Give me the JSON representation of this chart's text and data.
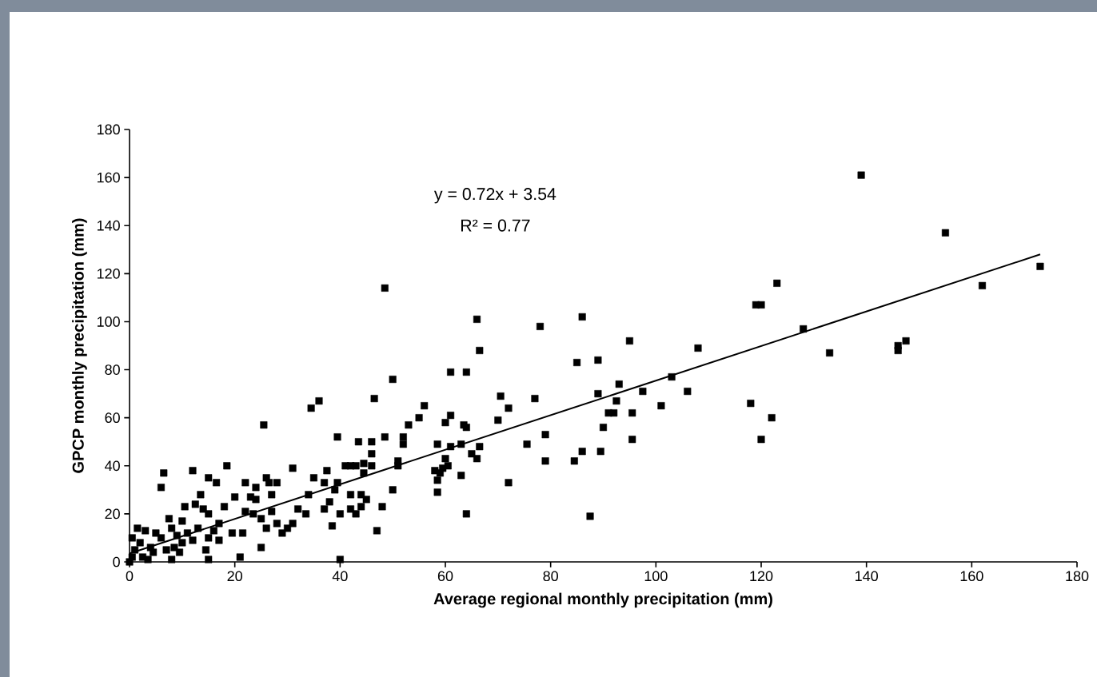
{
  "chart_data": {
    "type": "scatter",
    "xlabel": "Average regional monthly precipitation (mm)",
    "ylabel": "GPCP monthly precipitation (mm)",
    "xlim": [
      0,
      180
    ],
    "ylim": [
      0,
      180
    ],
    "xticks": [
      0,
      20,
      40,
      60,
      80,
      100,
      120,
      140,
      160,
      180
    ],
    "yticks": [
      0,
      20,
      40,
      60,
      80,
      100,
      120,
      140,
      160,
      180
    ],
    "annotations": [
      "y = 0.72x + 3.54",
      "R² = 0.77"
    ],
    "marker": "square",
    "series": [
      {
        "color": "#000000",
        "x": [
          139,
          155,
          173,
          162,
          123,
          119,
          120,
          128,
          133,
          146,
          146,
          147.5,
          118,
          120,
          122,
          108,
          106,
          103,
          101,
          97.5,
          95,
          95.5,
          95.5,
          93,
          92.5,
          92,
          91,
          90,
          89.5,
          89,
          89,
          87.5,
          86,
          86,
          85,
          84.5,
          79,
          79,
          78,
          77,
          75.5,
          72,
          72,
          70.5,
          70,
          66.5,
          66.5,
          66,
          66,
          65,
          64,
          64,
          64,
          63.5,
          63,
          63,
          61,
          61,
          61,
          60.5,
          60,
          60,
          59.5,
          59,
          58.5,
          58.5,
          58.5,
          58,
          56,
          55,
          53,
          52,
          52,
          51,
          51,
          50,
          50,
          48.5,
          48.5,
          48,
          47,
          46.5,
          46,
          46,
          46,
          45,
          44.5,
          44.5,
          44,
          44,
          43.5,
          43,
          43,
          42,
          42,
          42,
          41,
          40,
          40,
          39.5,
          39.5,
          39,
          38.5,
          38,
          37.5,
          37,
          37,
          36,
          35,
          34.5,
          34,
          33.5,
          32,
          31,
          31,
          30,
          29,
          28,
          28,
          27,
          27,
          26.5,
          26,
          26,
          25.5,
          25,
          25,
          24,
          24,
          23.5,
          23,
          22,
          22,
          21.5,
          21,
          20,
          19.5,
          18.5,
          18,
          17,
          16.5,
          16,
          15,
          15,
          15,
          14.5,
          14,
          13.5,
          13,
          12.5,
          12,
          12,
          11,
          10.5,
          10,
          9.5,
          9,
          8.5,
          8,
          8,
          7.5,
          7,
          6.5,
          6,
          6,
          5,
          4.5,
          4,
          3,
          2.5,
          2,
          1.5,
          1,
          0.5,
          0.5,
          0,
          3.5,
          10,
          17,
          15
        ],
        "values": [
          161,
          137,
          123,
          115,
          116,
          107,
          107,
          97,
          87,
          90,
          88,
          92,
          66,
          51,
          60,
          89,
          71,
          77,
          65,
          71,
          92,
          62,
          51,
          74,
          67,
          62,
          62,
          56,
          46,
          70,
          84,
          19,
          46,
          102,
          83,
          42,
          53,
          42,
          98,
          68,
          49,
          64,
          33,
          69,
          59,
          88,
          48,
          101,
          43,
          45,
          56,
          79,
          20,
          57,
          36,
          49,
          79,
          61,
          48,
          40,
          58,
          43,
          39,
          37,
          34,
          29,
          49,
          38,
          65,
          60,
          57,
          52,
          49,
          42,
          40,
          30,
          76,
          114,
          52,
          23,
          13,
          68,
          40,
          45,
          50,
          26,
          41,
          37,
          28,
          23,
          50,
          20,
          40,
          40,
          28,
          22,
          40,
          20,
          1,
          52,
          33,
          30,
          15,
          25,
          38,
          22,
          33,
          67,
          35,
          64,
          28,
          20,
          22,
          39,
          16,
          14,
          12,
          33,
          16,
          28,
          21,
          33,
          35,
          14,
          57,
          18,
          6,
          31,
          26,
          20,
          27,
          33,
          21,
          12,
          2,
          27,
          12,
          40,
          23,
          16,
          33,
          13,
          35,
          20,
          10,
          5,
          22,
          28,
          14,
          24,
          38,
          9,
          12,
          23,
          17,
          4,
          11,
          6,
          14,
          1,
          18,
          5,
          37,
          31,
          10,
          12,
          4,
          6,
          13,
          2,
          8,
          14,
          5,
          2,
          10,
          0,
          1,
          8,
          9,
          1
        ]
      },
      {
        "type": "line",
        "color": "#000000",
        "marker": "none",
        "x": [
          0,
          173
        ],
        "values": [
          3.5,
          128
        ]
      }
    ]
  }
}
